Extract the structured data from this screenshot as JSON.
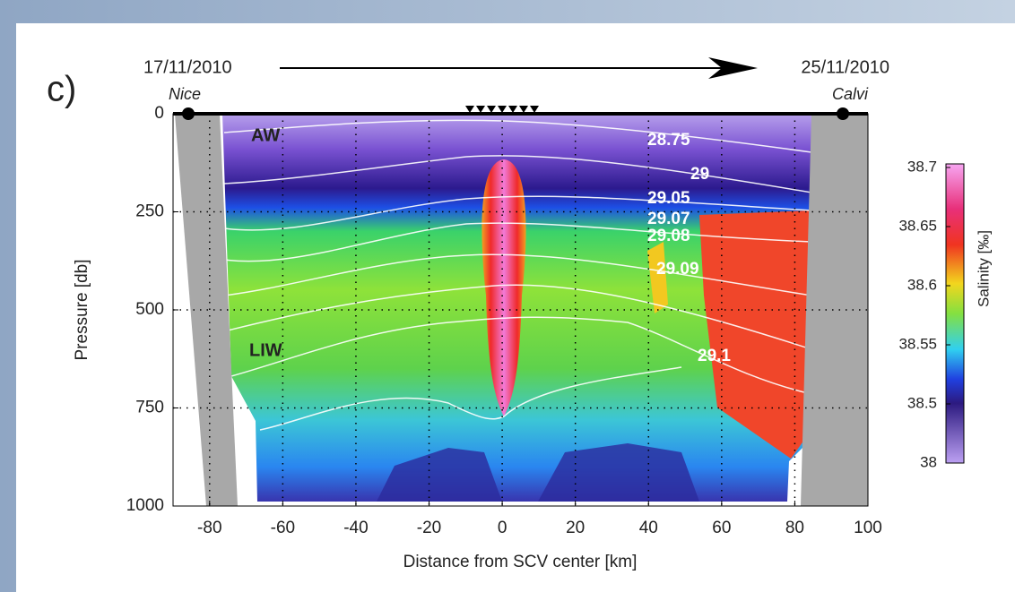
{
  "chart_data": {
    "type": "contour",
    "panel_label": "c)",
    "start_date": "17/11/2010",
    "end_date": "25/11/2010",
    "start_place": "Nice",
    "end_place": "Calvi",
    "xlabel": "Distance from SCV center [km]",
    "ylabel": "Pressure [db]",
    "xlim": [
      -90,
      100
    ],
    "ylim": [
      0,
      1000
    ],
    "y_inverted": true,
    "xticks": [
      -80,
      -60,
      -40,
      -20,
      0,
      20,
      40,
      60,
      80,
      100
    ],
    "yticks": [
      0,
      250,
      500,
      750,
      1000
    ],
    "grid": true,
    "water_masses": [
      "AW",
      "LIW"
    ],
    "isopycnal_labels": [
      "28.75",
      "29",
      "29.05",
      "29.07",
      "29.08",
      "29.09",
      "29.1"
    ],
    "colorbar": {
      "label": "Salinity [‰]",
      "ticks": [
        38.7,
        38.65,
        38.6,
        38.55,
        38.5,
        38
      ]
    }
  }
}
